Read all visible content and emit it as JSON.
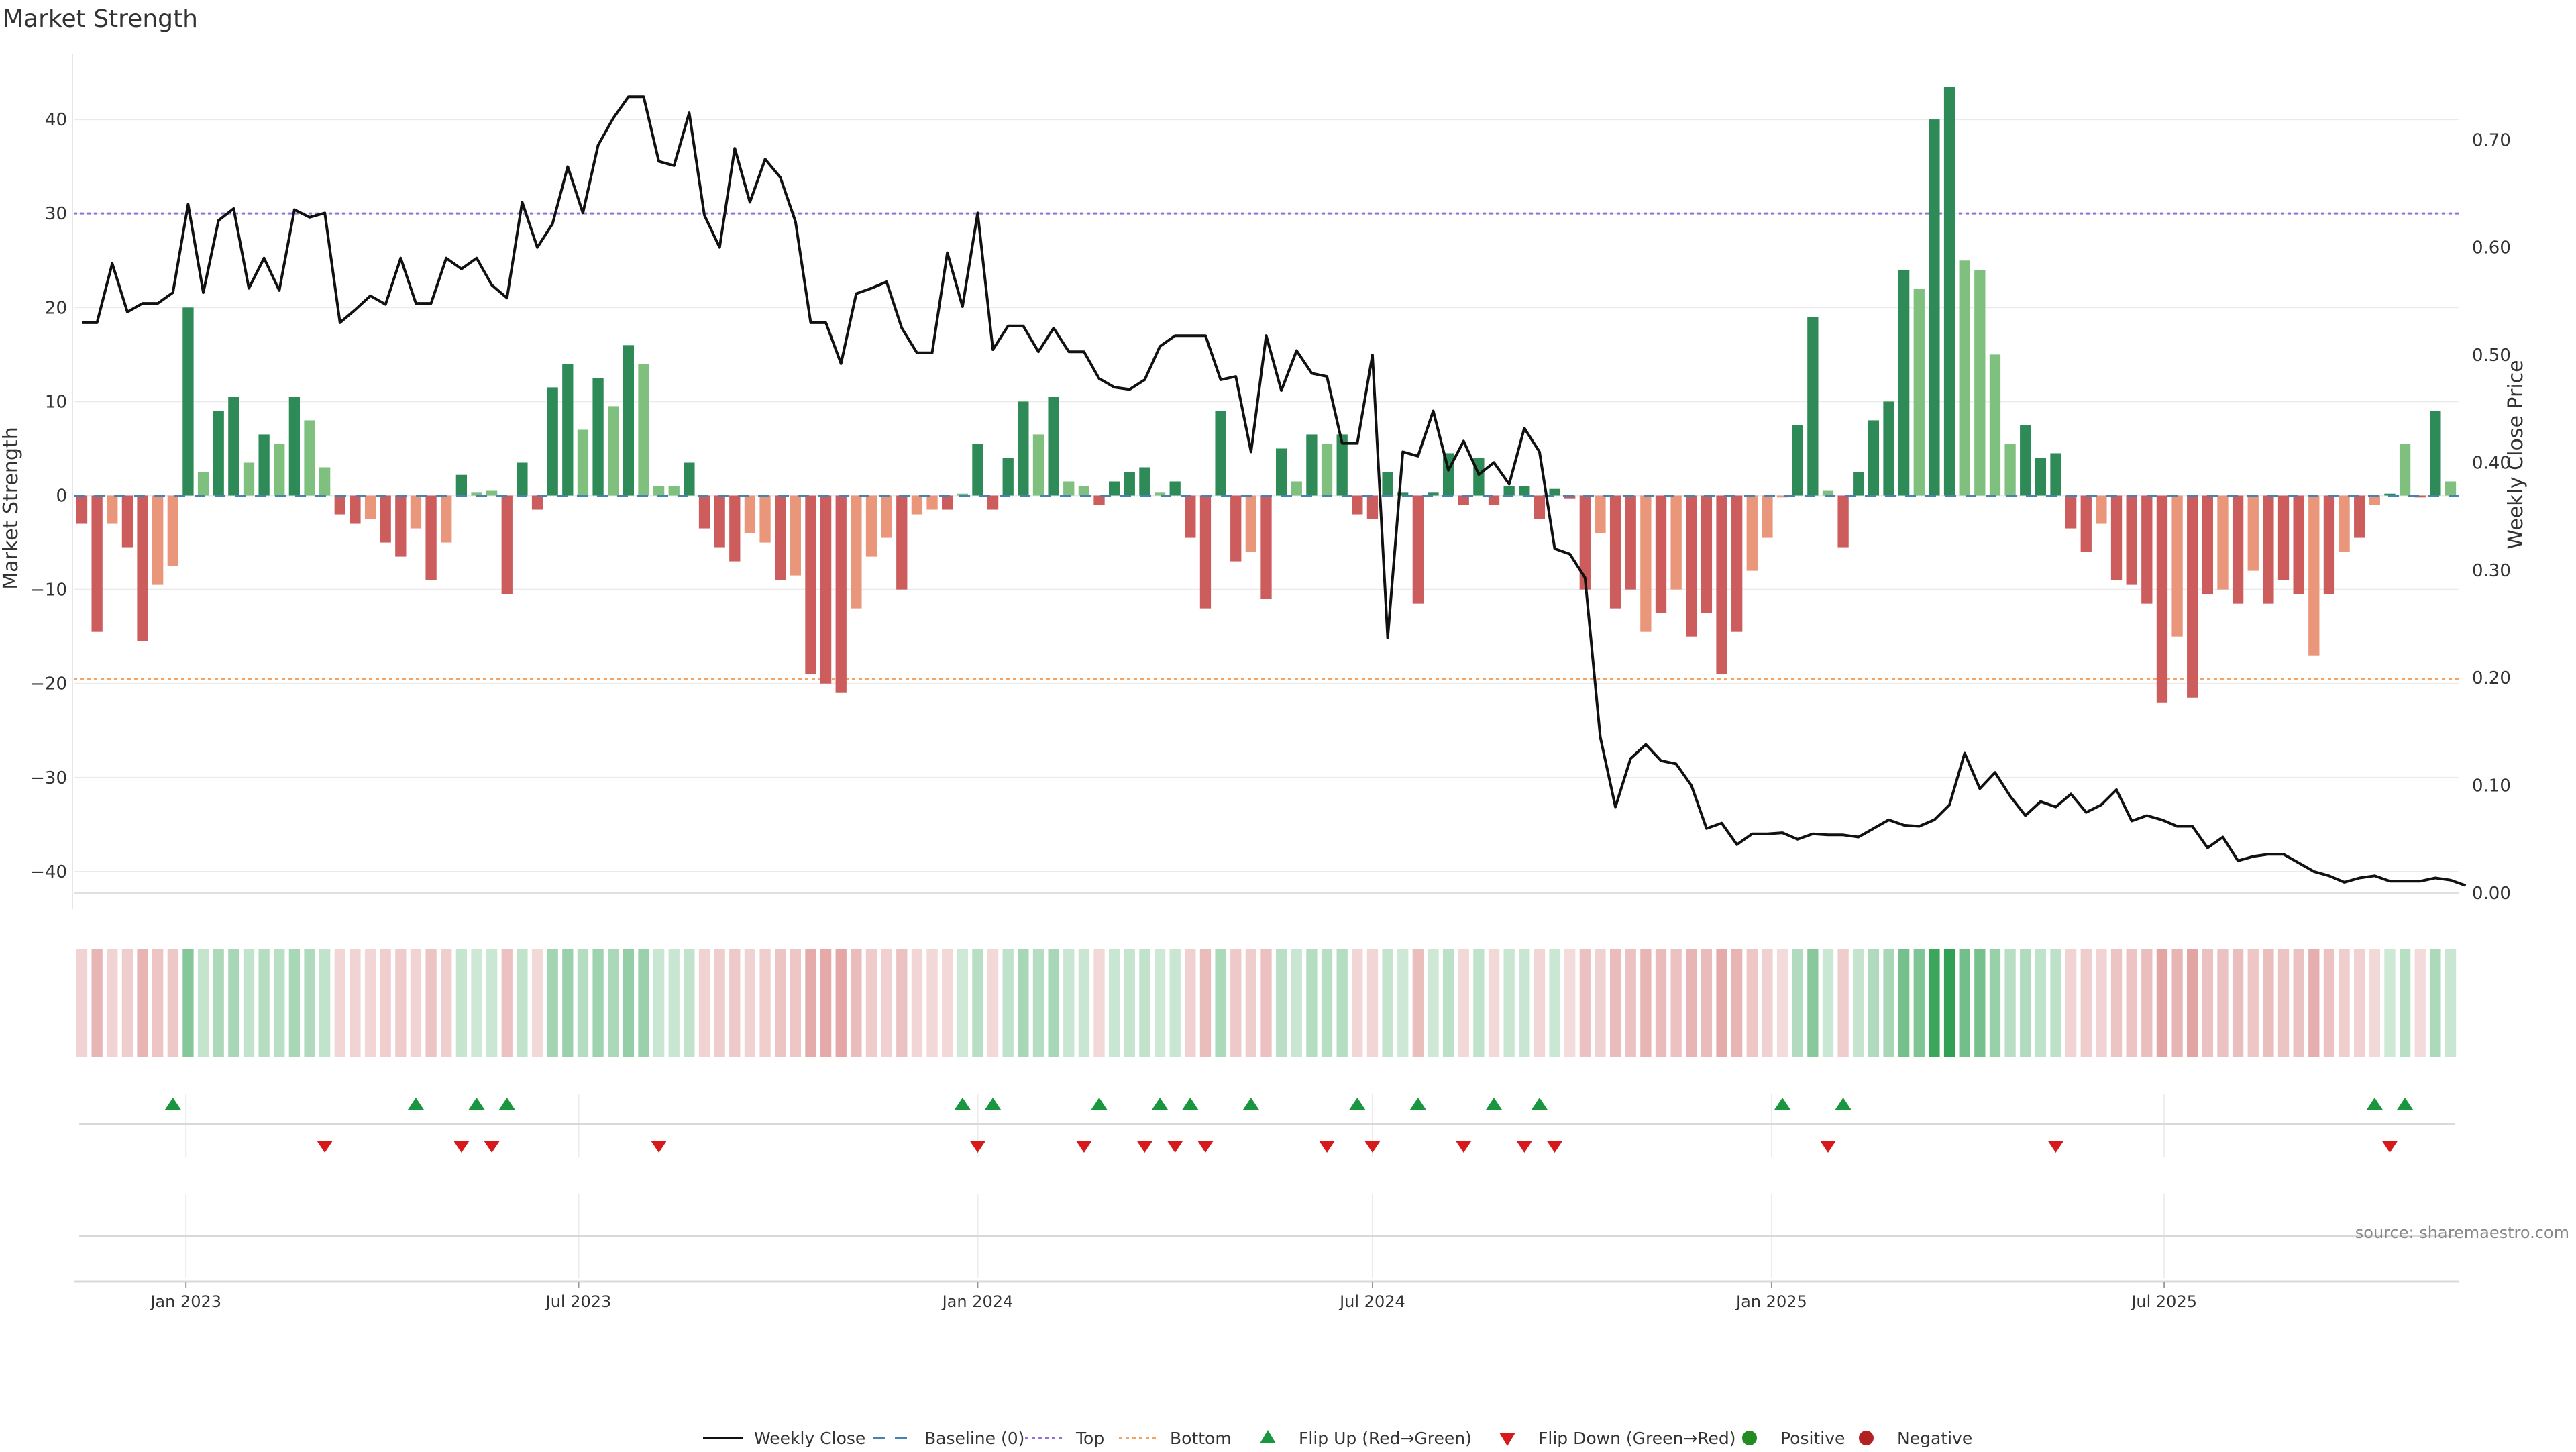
{
  "title": "Market Strength",
  "source": "source: sharemaestro.com",
  "colors": {
    "pos_strong": "#2e8b57",
    "pos_light": "#7fc07f",
    "neg_strong": "#cd5c5c",
    "neg_light": "#e9967a",
    "price_line": "#111111",
    "top_line": "#9370db",
    "bottom_line": "#f4a460",
    "baseline": "#4682b4",
    "flip_up": "#1a9641",
    "flip_down": "#d7191c",
    "positive_dot": "#228b22",
    "negative_dot": "#b22222"
  },
  "legend": [
    {
      "key": "weekly_close",
      "label": "Weekly Close"
    },
    {
      "key": "baseline",
      "label": "Baseline (0)"
    },
    {
      "key": "top",
      "label": "Top"
    },
    {
      "key": "bottom",
      "label": "Bottom"
    },
    {
      "key": "flip_up",
      "label": "Flip Up (Red→Green)"
    },
    {
      "key": "flip_down",
      "label": "Flip Down (Green→Red)"
    },
    {
      "key": "positive",
      "label": "Positive"
    },
    {
      "key": "negative",
      "label": "Negative"
    }
  ],
  "chart_data": {
    "type": "bar",
    "x_start": "2022-11-14",
    "x_step_days": 7,
    "date_ticks": [
      "2023-01-01",
      "2023-07-01",
      "2024-01-01",
      "2024-07-01",
      "2025-01-01",
      "2025-07-01"
    ],
    "date_tick_labels": [
      "Jan 2023",
      "Jul 2023",
      "Jan 2024",
      "Jul 2024",
      "Jan 2025",
      "Jul 2025"
    ],
    "ylabel_left": "Market Strength",
    "ylabel_right": "Weekly Close Price",
    "ylim_left": [
      -44,
      47
    ],
    "ylim_right": [
      -0.015,
      0.78
    ],
    "yticks_left": [
      -40,
      -30,
      -20,
      -10,
      0,
      10,
      20,
      30,
      40
    ],
    "yticks_right": [
      0.0,
      0.1,
      0.2,
      0.3,
      0.4,
      0.5,
      0.6,
      0.7
    ],
    "top_level": 30,
    "bottom_level": -19.5,
    "baseline": 0,
    "grid": true,
    "legend_position": "bottom",
    "strength": [
      -3,
      -14.5,
      -3,
      -5.5,
      -15.5,
      -9.5,
      -7.5,
      20,
      2.5,
      9,
      10.5,
      3.5,
      6.5,
      5.5,
      10.5,
      8,
      3,
      -2,
      -3,
      -2.5,
      -5,
      -6.5,
      -3.5,
      -9,
      -5,
      2.2,
      0.3,
      0.5,
      -10.5,
      3.5,
      -1.5,
      11.5,
      14,
      7,
      12.5,
      9.5,
      16,
      14,
      1,
      1,
      3.5,
      -3.5,
      -5.5,
      -7,
      -4,
      -5,
      -9,
      -8.5,
      -19,
      -20,
      -21,
      -12,
      -6.5,
      -4.5,
      -10,
      -2,
      -1.5,
      -1.5,
      0.2,
      5.5,
      -1.5,
      4,
      10,
      6.5,
      10.5,
      1.5,
      1,
      -1,
      1.5,
      2.5,
      3,
      0.3,
      1.5,
      -4.5,
      -12,
      9,
      -7,
      -6,
      -11,
      5,
      1.5,
      6.5,
      5.5,
      6.5,
      -2,
      -2.5,
      2.5,
      0.3,
      -11.5,
      0.3,
      4.5,
      -1,
      4,
      -1,
      1,
      1,
      -2.5,
      0.7,
      -0.3,
      -10,
      -4,
      -12,
      -10,
      -14.5,
      -12.5,
      -10,
      -15,
      -12.5,
      -19,
      -14.5,
      -8,
      -4.5,
      -0.2,
      7.5,
      19,
      0.5,
      -5.5,
      2.5,
      8,
      10,
      24,
      22,
      40,
      43.5,
      25,
      24,
      15,
      5.5,
      7.5,
      4,
      4.5,
      -3.5,
      -6,
      -3,
      -9,
      -9.5,
      -11.5,
      -22,
      -15,
      -21.5,
      -10.5,
      -10,
      -11.5,
      -8,
      -11.5,
      -9,
      -10.5,
      -17,
      -10.5,
      -6,
      -4.5,
      -1,
      0.2,
      5.5,
      -0.2,
      9,
      1.5
    ],
    "strength_shade": [
      1,
      1,
      0,
      1,
      1,
      0,
      0,
      1,
      0,
      1,
      1,
      0,
      1,
      0,
      1,
      0,
      0,
      1,
      1,
      0,
      1,
      1,
      0,
      1,
      0,
      1,
      0,
      0,
      1,
      1,
      1,
      1,
      1,
      0,
      1,
      0,
      1,
      0,
      0,
      0,
      1,
      1,
      1,
      1,
      0,
      0,
      1,
      0,
      1,
      1,
      1,
      0,
      0,
      0,
      1,
      0,
      0,
      1,
      0,
      1,
      1,
      1,
      1,
      0,
      1,
      0,
      0,
      1,
      1,
      1,
      1,
      0,
      1,
      1,
      1,
      1,
      1,
      0,
      1,
      1,
      0,
      1,
      0,
      1,
      1,
      1,
      1,
      1,
      1,
      1,
      1,
      1,
      1,
      1,
      1,
      1,
      1,
      1,
      1,
      1,
      0,
      1,
      1,
      0,
      1,
      0,
      1,
      1,
      1,
      1,
      0,
      0,
      0,
      1,
      1,
      0,
      1,
      1,
      1,
      1,
      1,
      0,
      1,
      1,
      0,
      0,
      0,
      0,
      1,
      1,
      1,
      1,
      1,
      0,
      1,
      1,
      1,
      1,
      0,
      1,
      1,
      0,
      1,
      0,
      1,
      1,
      1,
      0,
      1,
      0,
      1,
      0,
      1,
      0,
      1,
      1
    ],
    "price": [
      0.53,
      0.53,
      0.585,
      0.54,
      0.548,
      0.548,
      0.558,
      0.64,
      0.558,
      0.625,
      0.636,
      0.562,
      0.59,
      0.56,
      0.635,
      0.628,
      0.632,
      0.53,
      0.542,
      0.555,
      0.547,
      0.59,
      0.548,
      0.548,
      0.59,
      0.58,
      0.59,
      0.565,
      0.553,
      0.642,
      0.6,
      0.622,
      0.675,
      0.632,
      0.695,
      0.72,
      0.74,
      0.74,
      0.68,
      0.676,
      0.725,
      0.63,
      0.6,
      0.692,
      0.642,
      0.682,
      0.665,
      0.624,
      0.53,
      0.53,
      0.492,
      0.557,
      0.562,
      0.568,
      0.525,
      0.502,
      0.502,
      0.595,
      0.545,
      0.632,
      0.505,
      0.527,
      0.527,
      0.503,
      0.525,
      0.503,
      0.503,
      0.478,
      0.47,
      0.468,
      0.477,
      0.508,
      0.518,
      0.518,
      0.518,
      0.477,
      0.48,
      0.41,
      0.518,
      0.467,
      0.504,
      0.483,
      0.48,
      0.418,
      0.418,
      0.5,
      0.237,
      0.41,
      0.406,
      0.448,
      0.393,
      0.42,
      0.389,
      0.4,
      0.38,
      0.432,
      0.41,
      0.32,
      0.315,
      0.293,
      0.145,
      0.08,
      0.125,
      0.138,
      0.123,
      0.12,
      0.1,
      0.06,
      0.065,
      0.045,
      0.055,
      0.055,
      0.056,
      0.05,
      0.055,
      0.054,
      0.054,
      0.052,
      0.06,
      0.068,
      0.063,
      0.062,
      0.068,
      0.082,
      0.13,
      0.097,
      0.112,
      0.09,
      0.072,
      0.085,
      0.08,
      0.092,
      0.075,
      0.082,
      0.096,
      0.067,
      0.072,
      0.068,
      0.062,
      0.062,
      0.042,
      0.052,
      0.03,
      0.034,
      0.036,
      0.036,
      0.028,
      0.02,
      0.016,
      0.01,
      0.014,
      0.016,
      0.011,
      0.011,
      0.011,
      0.014,
      0.012,
      0.007
    ],
    "flip_up_dates": [
      "2022-12-26",
      "2023-04-17",
      "2023-05-15",
      "2023-05-29",
      "2023-12-25",
      "2024-01-08",
      "2024-02-26",
      "2024-03-25",
      "2024-04-08",
      "2024-05-06",
      "2024-06-24",
      "2024-07-22",
      "2024-08-26",
      "2024-09-16",
      "2025-01-06",
      "2025-02-03",
      "2025-10-06",
      "2025-10-20"
    ],
    "flip_down_dates": [
      "2023-03-06",
      "2023-05-08",
      "2023-05-22",
      "2023-08-07",
      "2024-01-01",
      "2024-02-19",
      "2024-03-18",
      "2024-04-01",
      "2024-04-15",
      "2024-06-10",
      "2024-07-01",
      "2024-08-12",
      "2024-09-09",
      "2024-09-23",
      "2025-01-27",
      "2025-05-12",
      "2025-10-13"
    ]
  }
}
